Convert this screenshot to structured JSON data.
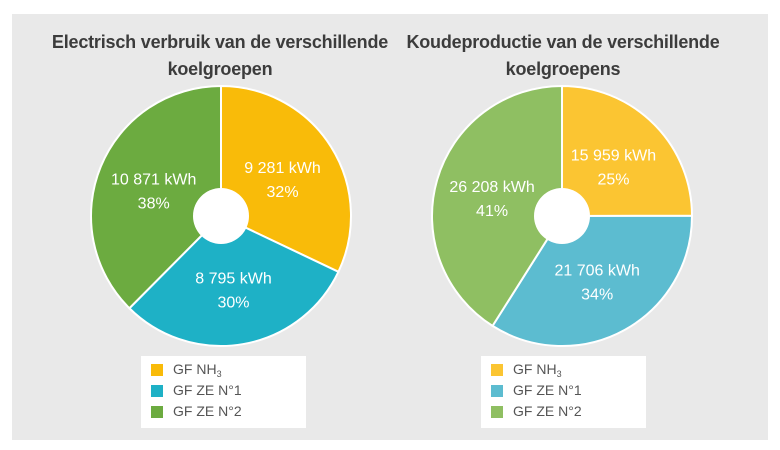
{
  "chart_data": [
    {
      "type": "pie",
      "title_lines": [
        "Electrisch verbruik van de verschillende",
        "koelgroepen"
      ],
      "slices": [
        {
          "name": "GF NH3",
          "value": 9281,
          "value_label": "9 281 kWh",
          "pct_label": "32%",
          "color": "#f9bb09"
        },
        {
          "name": "GF ZE N°1",
          "value": 8795,
          "value_label": "8 795 kWh",
          "pct_label": "30%",
          "color": "#1eb1c6"
        },
        {
          "name": "GF ZE N°2",
          "value": 10871,
          "value_label": "10 871 kWh",
          "pct_label": "38%",
          "color": "#6cab40"
        }
      ],
      "legend": [
        {
          "prefix": "GF NH",
          "sub": "3",
          "color": "#f9bb09"
        },
        {
          "prefix": "GF ZE N°1",
          "sub": "",
          "color": "#1eb1c6"
        },
        {
          "prefix": "GF ZE N°2",
          "sub": "",
          "color": "#6cab40"
        }
      ]
    },
    {
      "type": "pie",
      "title_lines": [
        "Koudeproductie van de verschillende",
        "koelgroepens"
      ],
      "slices": [
        {
          "name": "GF NH3",
          "value": 15959,
          "value_label": "15 959 kWh",
          "pct_label": "25%",
          "color": "#fbc532"
        },
        {
          "name": "GF ZE N°1",
          "value": 21706,
          "value_label": "21 706 kWh",
          "pct_label": "34%",
          "color": "#5cbcd0"
        },
        {
          "name": "GF ZE N°2",
          "value": 26208,
          "value_label": "26 208 kWh",
          "pct_label": "41%",
          "color": "#8fbf62"
        }
      ],
      "legend": [
        {
          "prefix": "GF NH",
          "sub": "3",
          "color": "#fbc532"
        },
        {
          "prefix": "GF ZE N°1",
          "sub": "",
          "color": "#5cbcd0"
        },
        {
          "prefix": "GF ZE N°2",
          "sub": "",
          "color": "#8fbf62"
        }
      ]
    }
  ]
}
